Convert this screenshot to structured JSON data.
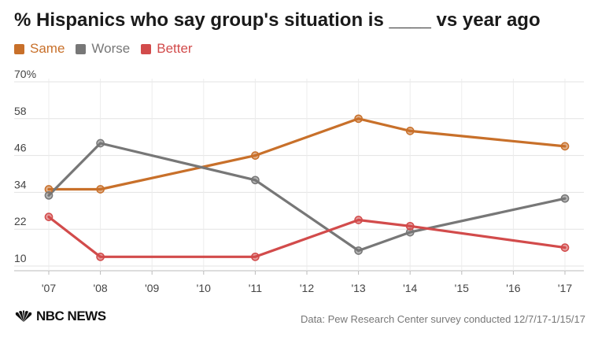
{
  "title": "% Hispanics who say group's situation is ____ vs year ago",
  "logo_text": "NBC NEWS",
  "source": "Data: Pew Research Center survey conducted 12/7/17-1/15/17",
  "colors": {
    "same": "#c8702a",
    "worse": "#777777",
    "better": "#d24b4b"
  },
  "chart_data": {
    "type": "line",
    "x": [
      "'07",
      "'08",
      "'09",
      "'10",
      "'11",
      "'12",
      "'13",
      "'14",
      "'15",
      "'16",
      "'17"
    ],
    "y_ticks": [
      "70%",
      "58",
      "46",
      "34",
      "22",
      "10"
    ],
    "y_tick_values": [
      70,
      58,
      46,
      34,
      22,
      10
    ],
    "ylim": [
      10,
      70
    ],
    "grid": true,
    "legend": "top-left",
    "series": [
      {
        "name": "Same",
        "color": "#c8702a",
        "points": [
          [
            "'07",
            35
          ],
          [
            "'08",
            35
          ],
          [
            "'11",
            46
          ],
          [
            "'13",
            58
          ],
          [
            "'14",
            54
          ],
          [
            "'17",
            49
          ]
        ]
      },
      {
        "name": "Worse",
        "color": "#777777",
        "points": [
          [
            "'07",
            33
          ],
          [
            "'08",
            50
          ],
          [
            "'11",
            38
          ],
          [
            "'13",
            15
          ],
          [
            "'14",
            21
          ],
          [
            "'17",
            32
          ]
        ]
      },
      {
        "name": "Better",
        "color": "#d24b4b",
        "points": [
          [
            "'07",
            26
          ],
          [
            "'08",
            13
          ],
          [
            "'11",
            13
          ],
          [
            "'13",
            25
          ],
          [
            "'14",
            23
          ],
          [
            "'17",
            16
          ]
        ]
      }
    ]
  }
}
